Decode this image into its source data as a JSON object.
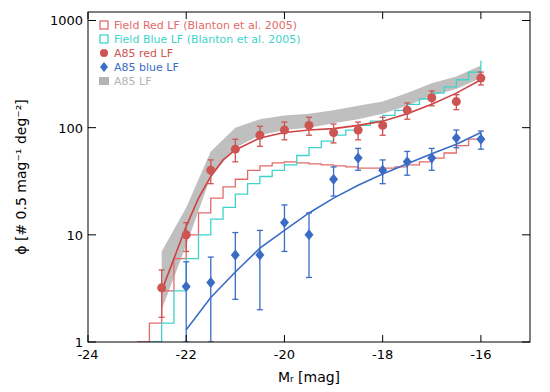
{
  "chart_data": {
    "type": "line",
    "x_label": "Mᵣ [mag]",
    "y_label": "ϕ [# 0.5 mag⁻¹ deg⁻²]",
    "log": "y",
    "legend": "upper left",
    "xlim": [
      -24,
      -15
    ],
    "ylim": [
      1,
      1200
    ],
    "xticks": [
      -24,
      -22,
      -20,
      -18,
      -16
    ],
    "yticks": [
      1,
      10,
      100,
      1000
    ],
    "series": [
      {
        "name": "Field Red LF (Blanton et al. 2005)",
        "type": "step",
        "color": "#e36a6a",
        "x": [
          -23,
          -22.75,
          -22.5,
          -22.25,
          -22,
          -21.75,
          -21.5,
          -21.25,
          -21,
          -20.75,
          -20.5,
          -20.25,
          -20,
          -19.75,
          -19.5,
          -19.25,
          -19,
          -18.75,
          -18.5,
          -18.25,
          -18,
          -17.75,
          -17.5,
          -17.25,
          -17,
          -16.75,
          -16.5,
          -16.25,
          -16
        ],
        "values": [
          1,
          1.5,
          3,
          6,
          10,
          16,
          22,
          28,
          33,
          40,
          44,
          47,
          48,
          47,
          46,
          45,
          44,
          43,
          42,
          42,
          42,
          43,
          45,
          48,
          52,
          58,
          68,
          78,
          88
        ]
      },
      {
        "name": "Field Blue LF (Blanton et al. 2005)",
        "type": "step",
        "color": "#3fd3cc",
        "x": [
          -22.75,
          -22.5,
          -22.25,
          -22,
          -21.75,
          -21.5,
          -21.25,
          -21,
          -20.75,
          -20.5,
          -20.25,
          -20,
          -19.75,
          -19.5,
          -19.25,
          -19,
          -18.75,
          -18.5,
          -18.25,
          -18,
          -17.75,
          -17.5,
          -17.25,
          -17,
          -16.75,
          -16.5,
          -16.25,
          -16
        ],
        "values": [
          1,
          1.5,
          3,
          6,
          10,
          14,
          18,
          24,
          30,
          35,
          40,
          45,
          55,
          65,
          75,
          85,
          95,
          105,
          115,
          130,
          145,
          165,
          185,
          210,
          240,
          280,
          330,
          420
        ]
      },
      {
        "name": "A85 red LF",
        "type": "scatter",
        "marker": "circle",
        "color": "#cd5452",
        "x": [
          -22.5,
          -22,
          -21.5,
          -21,
          -20.5,
          -20,
          -19.5,
          -19,
          -18.5,
          -18,
          -17.5,
          -17,
          -16.5,
          -16
        ],
        "values": [
          3.2,
          10,
          40,
          63,
          85,
          95,
          105,
          90,
          95,
          105,
          145,
          190,
          175,
          290
        ],
        "errors": [
          1.5,
          3,
          10,
          15,
          18,
          18,
          20,
          18,
          18,
          20,
          25,
          30,
          28,
          40
        ]
      },
      {
        "name": "A85 blue LF",
        "type": "scatter",
        "marker": "diamond",
        "color": "#3a6cc6",
        "x": [
          -22,
          -21.5,
          -21,
          -20.5,
          -20,
          -19.5,
          -19,
          -18.5,
          -18,
          -17.5,
          -17,
          -16.5,
          -16
        ],
        "values": [
          3.3,
          3.6,
          6.5,
          6.5,
          13,
          10,
          33,
          52,
          40,
          48,
          52,
          80,
          78
        ],
        "errors": [
          2.3,
          2.6,
          4,
          4.5,
          6,
          6,
          10,
          12,
          10,
          12,
          12,
          15,
          15
        ]
      },
      {
        "name": "A85 LF",
        "type": "band",
        "color": "#b4b4b4",
        "x": [
          -22.5,
          -22,
          -21.5,
          -21,
          -20.5,
          -20,
          -19.5,
          -19,
          -18.5,
          -18,
          -17.5,
          -17,
          -16.5,
          -16
        ],
        "lower": [
          2,
          8,
          35,
          65,
          85,
          95,
          100,
          110,
          120,
          135,
          160,
          200,
          230,
          290
        ],
        "upper": [
          7,
          18,
          60,
          100,
          120,
          130,
          135,
          145,
          160,
          175,
          210,
          260,
          300,
          380
        ]
      },
      {
        "type": "line",
        "color": "#cd4444",
        "x": [
          -22.5,
          -22.25,
          -22,
          -21.75,
          -21.5,
          -21.25,
          -21,
          -20.5,
          -20,
          -19.5,
          -19,
          -18.5,
          -18,
          -17.5,
          -17,
          -16.5,
          -16
        ],
        "values": [
          3,
          6,
          12,
          22,
          35,
          50,
          62,
          80,
          90,
          95,
          98,
          105,
          115,
          135,
          165,
          210,
          280
        ]
      },
      {
        "type": "line",
        "color": "#3a6cc6",
        "x": [
          -22,
          -21.5,
          -21,
          -20.5,
          -20,
          -19.5,
          -19,
          -18.5,
          -18,
          -17.5,
          -17,
          -16.5,
          -16
        ],
        "values": [
          1.3,
          2.6,
          4.5,
          7.5,
          11,
          16,
          22,
          29,
          37,
          46,
          57,
          70,
          90
        ]
      }
    ]
  }
}
